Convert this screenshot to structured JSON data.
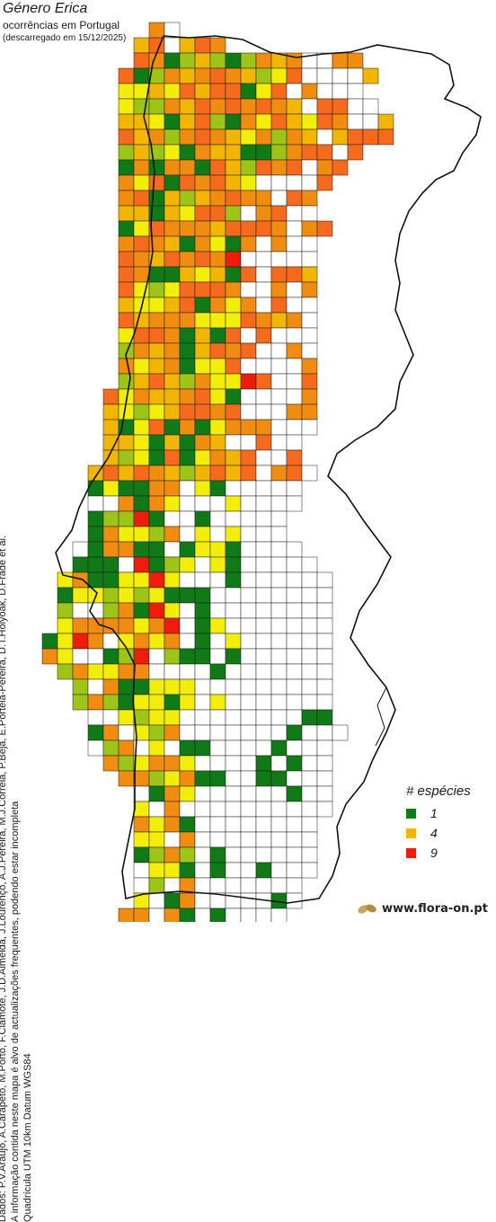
{
  "title": "Género Erica",
  "subtitle": "ocorrências em Portugal",
  "download_note": "(descarregado em 15/12/2025)",
  "credits": {
    "line1": "Dados: P.V.Araújo, A.Carapeto, M.Porto, F.Clamote, J.D.Almeida, J.Lourenço, A.J.Pereira, M.J.Correia, P.Beja, E.Portela-Pereira, D.T.Holyoak, D.Frade et al.",
    "line2": "A informação contida neste mapa é alvo de actualizações frequentes, podendo estar incompleta",
    "line3": "Quadrícula UTM 10km Datum WGS84"
  },
  "legend": {
    "title": "# espécies",
    "items": [
      {
        "label": "1",
        "color": "#0f7a16"
      },
      {
        "label": "4",
        "color": "#f2b500"
      },
      {
        "label": "9",
        "color": "#ee1c0a"
      }
    ]
  },
  "colors": {
    "level1": "#0f7a16",
    "level2": "#9ec417",
    "level3": "#f2ee0a",
    "level4": "#f2b500",
    "level5": "#f08c10",
    "level6": "#f56a1d",
    "level9": "#ee1c0a",
    "grid": "#1a1a1a",
    "coast": "#111111"
  },
  "brand": "www.flora-on.pt"
}
